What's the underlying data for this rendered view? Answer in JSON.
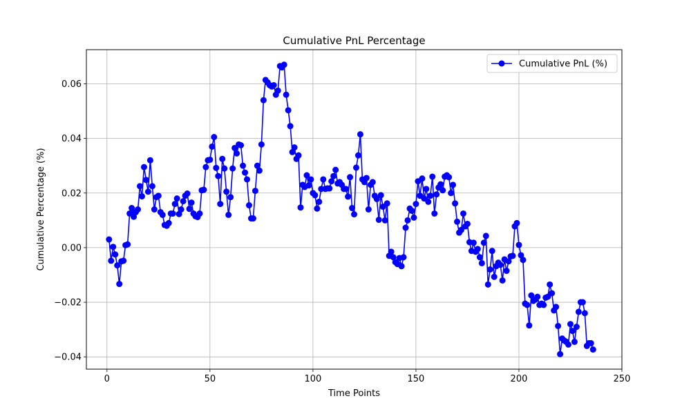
{
  "chart_data": {
    "type": "line",
    "title": "Cumulative PnL Percentage",
    "xlabel": "Time Points",
    "ylabel": "Cumulative Percentage (%)",
    "xlim": [
      -10,
      250
    ],
    "ylim": [
      -0.0445,
      0.0725
    ],
    "xticks": [
      0,
      50,
      100,
      150,
      200,
      250
    ],
    "yticks": [
      -0.04,
      -0.02,
      0.0,
      0.02,
      0.04,
      0.06
    ],
    "ytick_labels": [
      "−0.04",
      "−0.02",
      "0.00",
      "0.02",
      "0.04",
      "0.06"
    ],
    "grid": true,
    "legend_position": "top-right",
    "series": [
      {
        "name": "Cumulative PnL (%)",
        "color": "#0000ff",
        "marker": "circle",
        "x_start": 1,
        "x_step": 1,
        "values": [
          0.003,
          -0.0048,
          0.0003,
          -0.0025,
          -0.0065,
          -0.0133,
          -0.005,
          -0.0048,
          0.0009,
          0.0012,
          0.0125,
          0.0145,
          0.0113,
          0.013,
          0.014,
          0.0225,
          0.0188,
          0.0295,
          0.0248,
          0.0205,
          0.032,
          0.0225,
          0.014,
          0.0185,
          0.019,
          0.013,
          0.012,
          0.0083,
          0.008,
          0.009,
          0.0125,
          0.0125,
          0.016,
          0.018,
          0.0123,
          0.014,
          0.017,
          0.019,
          0.0198,
          0.0142,
          0.0165,
          0.0125,
          0.0115,
          0.0112,
          0.0125,
          0.021,
          0.0212,
          0.0295,
          0.032,
          0.0322,
          0.037,
          0.0405,
          0.0292,
          0.0262,
          0.016,
          0.0325,
          0.029,
          0.0205,
          0.012,
          0.0185,
          0.029,
          0.0365,
          0.0345,
          0.0378,
          0.0375,
          0.03,
          0.0275,
          0.025,
          0.0155,
          0.0107,
          0.0107,
          0.0208,
          0.03,
          0.0282,
          0.0378,
          0.054,
          0.0614,
          0.0605,
          0.0595,
          0.059,
          0.0595,
          0.056,
          0.0575,
          0.0665,
          0.066,
          0.067,
          0.056,
          0.0503,
          0.0445,
          0.035,
          0.0367,
          0.0325,
          0.0338,
          0.0147,
          0.023,
          0.0222,
          0.0265,
          0.0228,
          0.025,
          0.02,
          0.0192,
          0.0143,
          0.0168,
          0.0215,
          0.025,
          0.0215,
          0.0217,
          0.0217,
          0.0243,
          0.0262,
          0.0285,
          0.0235,
          0.024,
          0.023,
          0.0215,
          0.0215,
          0.0187,
          0.0258,
          0.0145,
          0.0122,
          0.0293,
          0.0338,
          0.0415,
          0.025,
          0.024,
          0.0255,
          0.014,
          0.023,
          0.024,
          0.019,
          0.0178,
          0.0102,
          0.0192,
          0.015,
          0.01,
          0.0162,
          -0.003,
          -0.0015,
          -0.0035,
          -0.0053,
          -0.006,
          -0.0038,
          -0.0068,
          -0.0035,
          0.0073,
          0.01,
          0.0143,
          0.0135,
          0.011,
          0.016,
          0.0243,
          0.019,
          0.0253,
          0.018,
          0.0215,
          0.0168,
          0.019,
          0.026,
          0.0125,
          0.0195,
          0.022,
          0.0232,
          0.021,
          0.026,
          0.0265,
          0.0258,
          0.02,
          0.023,
          0.0162,
          0.0095,
          0.0055,
          0.0065,
          0.0125,
          0.0078,
          0.0087,
          0.002,
          -0.0012,
          0.0018,
          -0.0015,
          -0.0005,
          -0.0035,
          -0.0057,
          0.0018,
          0.0043,
          -0.0135,
          -0.008,
          -0.0012,
          -0.0107,
          -0.0068,
          -0.0055,
          -0.0063,
          -0.012,
          -0.0043,
          -0.0085,
          -0.005,
          -0.0032,
          -0.003,
          0.0078,
          0.009,
          0.001,
          -0.0028,
          -0.0045,
          -0.0205,
          -0.021,
          -0.0285,
          -0.0175,
          -0.0195,
          -0.019,
          -0.018,
          -0.021,
          -0.0205,
          -0.021,
          -0.0183,
          -0.018,
          -0.0135,
          -0.0167,
          -0.023,
          -0.0217,
          -0.0287,
          -0.039,
          -0.0333,
          -0.034,
          -0.0345,
          -0.0355,
          -0.028,
          -0.0305,
          -0.0345,
          -0.029,
          -0.0235,
          -0.02,
          -0.02,
          -0.024,
          -0.036,
          -0.035,
          -0.035,
          -0.0373
        ]
      }
    ]
  }
}
